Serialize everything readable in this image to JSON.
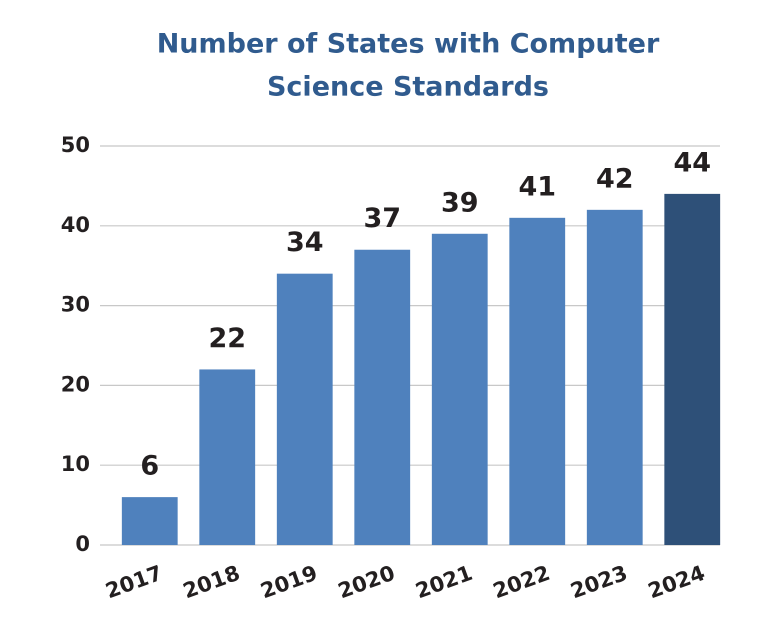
{
  "chart_data": {
    "type": "bar",
    "title": [
      "Number of States with Computer",
      "Science Standards"
    ],
    "categories": [
      "2017",
      "2018",
      "2019",
      "2020",
      "2021",
      "2022",
      "2023",
      "2024"
    ],
    "values": [
      6,
      22,
      34,
      37,
      39,
      41,
      42,
      44
    ],
    "colors": [
      "#4f81bd",
      "#4f81bd",
      "#4f81bd",
      "#4f81bd",
      "#4f81bd",
      "#4f81bd",
      "#4f81bd",
      "#2e5078"
    ],
    "ylim": [
      0,
      50
    ],
    "yticks": [
      0,
      10,
      20,
      30,
      40,
      50
    ],
    "grid": true
  }
}
